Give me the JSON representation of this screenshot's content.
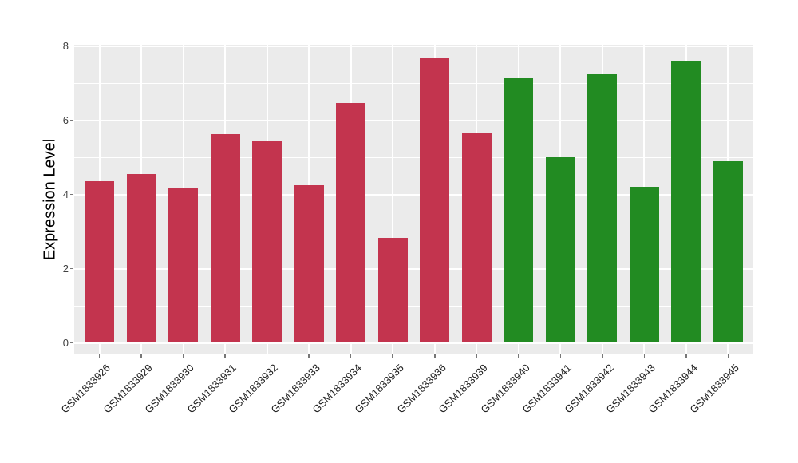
{
  "figure": {
    "background": "#FFFFFF",
    "panel_bg": "#EBEBEB",
    "grid_color": "#FFFFFF",
    "axis_text_color": "#404040",
    "tick_mark_color": "#777777"
  },
  "chart_data": {
    "type": "bar",
    "title": "",
    "xlabel": "",
    "ylabel": "Expression Level",
    "grid": true,
    "legend_position": "none",
    "ylim": [
      -0.4,
      8.04
    ],
    "yticks": [
      0,
      2,
      4,
      6,
      8
    ],
    "yticks_minor": [
      1,
      3,
      5,
      7
    ],
    "categories": [
      "GSM1833926",
      "GSM1833929",
      "GSM1833930",
      "GSM1833931",
      "GSM1833932",
      "GSM1833933",
      "GSM1833934",
      "GSM1833935",
      "GSM1833936",
      "GSM1833939",
      "GSM1833940",
      "GSM1833941",
      "GSM1833942",
      "GSM1833943",
      "GSM1833944",
      "GSM1833945"
    ],
    "values": [
      4.36,
      4.54,
      4.16,
      5.63,
      5.43,
      4.24,
      6.46,
      2.82,
      7.66,
      5.64,
      7.12,
      5.01,
      7.23,
      4.21,
      7.6,
      4.9
    ],
    "bar_colors": [
      "#C3344E",
      "#C3344E",
      "#C3344E",
      "#C3344E",
      "#C3344E",
      "#C3344E",
      "#C3344E",
      "#C3344E",
      "#C3344E",
      "#C3344E",
      "#228B22",
      "#228B22",
      "#228B22",
      "#228B22",
      "#228B22",
      "#228B22"
    ],
    "groups": [
      {
        "color": "#C3344E",
        "first_category": "GSM1833926",
        "last_category": "GSM1833939",
        "count": 10
      },
      {
        "color": "#228B22",
        "first_category": "GSM1833940",
        "last_category": "GSM1833945",
        "count": 6
      }
    ]
  }
}
